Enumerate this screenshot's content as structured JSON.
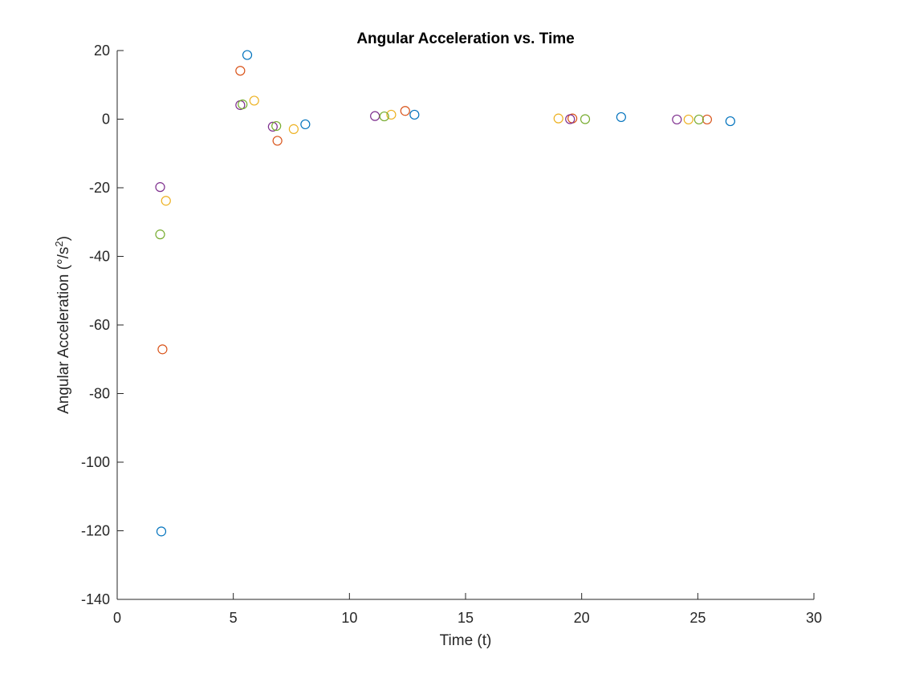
{
  "chart_data": {
    "type": "scatter",
    "title": "Angular Acceleration vs. Time",
    "xlabel": "Time (t)",
    "ylabel": {
      "main": "Angular Acceleration (°/s",
      "sup": "2",
      "end": ")"
    },
    "xlim": [
      0,
      30
    ],
    "ylim": [
      -140,
      20
    ],
    "xticks": [
      "0",
      "5",
      "10",
      "15",
      "20",
      "25",
      "30"
    ],
    "yticks": [
      "20",
      "0",
      "-20",
      "-40",
      "-60",
      "-80",
      "-100",
      "-120",
      "-140"
    ],
    "grid": false,
    "marker": "open-circle",
    "series": [
      {
        "color": "#0072BD",
        "x": [
          1.9,
          5.6,
          8.1,
          12.8,
          21.7,
          26.4
        ],
        "y": [
          -120.2,
          18.7,
          -1.5,
          1.3,
          0.6,
          -0.6
        ]
      },
      {
        "color": "#D95319",
        "x": [
          1.95,
          5.3,
          6.9,
          12.4,
          19.6,
          25.4
        ],
        "y": [
          -67.1,
          14.1,
          -6.3,
          2.4,
          0.2,
          -0.1
        ]
      },
      {
        "color": "#EDB120",
        "x": [
          2.1,
          5.9,
          7.6,
          11.8,
          19.0,
          24.6
        ],
        "y": [
          -23.8,
          5.4,
          -2.9,
          1.3,
          0.2,
          -0.1
        ]
      },
      {
        "color": "#7E2F8E",
        "x": [
          1.85,
          5.3,
          6.7,
          11.1,
          19.5,
          24.1
        ],
        "y": [
          -19.8,
          4.1,
          -2.2,
          0.9,
          0.0,
          -0.1
        ]
      },
      {
        "color": "#77AC30",
        "x": [
          1.85,
          5.4,
          6.85,
          11.5,
          20.15,
          25.05
        ],
        "y": [
          -33.6,
          4.3,
          -2.0,
          0.8,
          0.0,
          -0.1
        ]
      }
    ]
  }
}
